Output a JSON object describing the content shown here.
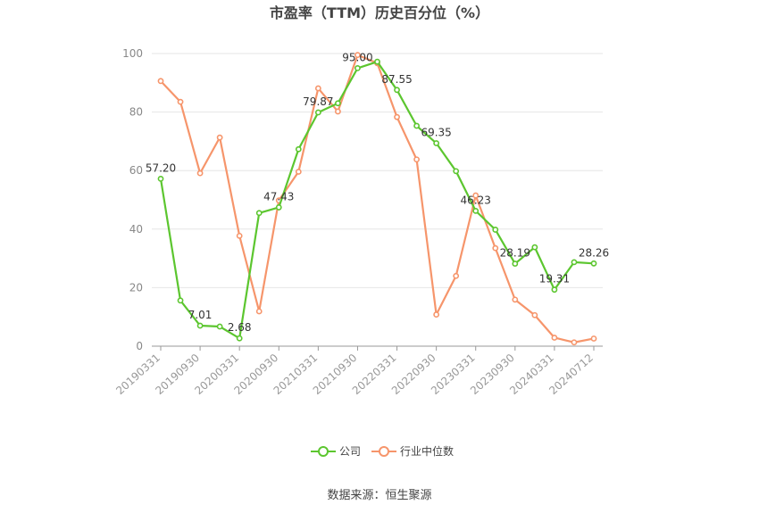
{
  "chart_data": {
    "type": "line",
    "title": "市盈率（TTM）历史百分位（%）",
    "source": "数据来源：恒生聚源",
    "ylim": [
      0,
      100
    ],
    "yticks": [
      "0",
      "20",
      "40",
      "60",
      "80",
      "100"
    ],
    "grid": true,
    "legend_position": "bottom",
    "x": [
      "20190331",
      "20190630",
      "20190930",
      "20191231",
      "20200331",
      "20200630",
      "20200930",
      "20201231",
      "20210331",
      "20210630",
      "20210930",
      "20211231",
      "20220331",
      "20220630",
      "20220930",
      "20221231",
      "20230331",
      "20230630",
      "20230930",
      "20231231",
      "20240331",
      "20240630",
      "20240712"
    ],
    "xtick_labels": [
      "20190331",
      "20190930",
      "20200331",
      "20200930",
      "20210331",
      "20210930",
      "20220331",
      "20220930",
      "20230331",
      "20230930",
      "20240331",
      "20240712"
    ],
    "series": [
      {
        "name": "公司",
        "color": "#5cc62f",
        "values": [
          57.2,
          15.6,
          7.01,
          6.7,
          2.68,
          45.5,
          47.43,
          67.3,
          79.87,
          83.0,
          95.0,
          97.2,
          87.55,
          75.3,
          69.35,
          59.8,
          46.23,
          39.8,
          28.19,
          33.8,
          19.31,
          28.7,
          28.26
        ],
        "labels": [
          "57.20",
          "",
          "7.01",
          "",
          "2.68",
          "",
          "47.43",
          "",
          "79.87",
          "",
          "95.00",
          "",
          "87.55",
          "",
          "69.35",
          "",
          "46.23",
          "",
          "28.19",
          "",
          "19.31",
          "",
          "28.26"
        ]
      },
      {
        "name": "行业中位数",
        "color": "#f6956b",
        "values": [
          90.6,
          83.5,
          59.1,
          71.3,
          37.7,
          11.9,
          49.8,
          59.6,
          88.1,
          80.2,
          99.5,
          96.7,
          78.3,
          63.8,
          10.8,
          24.0,
          51.5,
          33.5,
          15.9,
          10.6,
          2.9,
          1.3,
          2.6
        ]
      }
    ]
  }
}
